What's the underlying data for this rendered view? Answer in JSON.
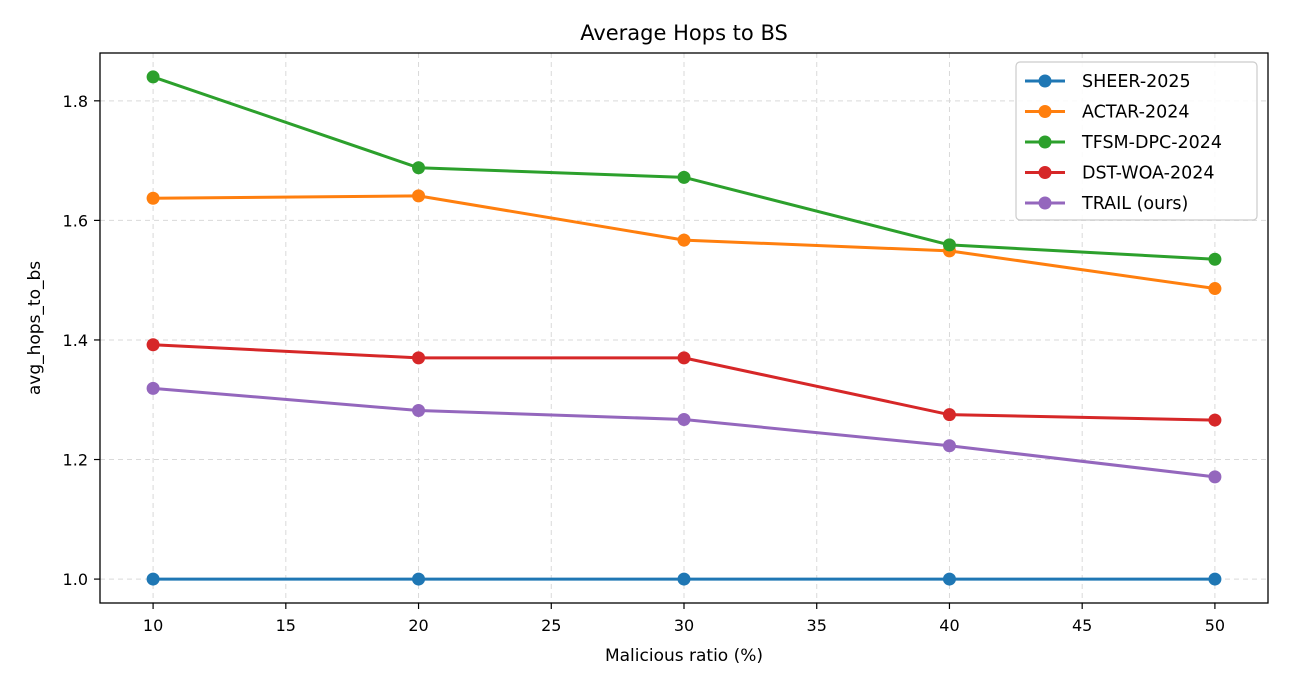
{
  "chart_data": {
    "type": "line",
    "title": "Average Hops to BS",
    "xlabel": "Malicious ratio (%)",
    "ylabel": "avg_hops_to_bs",
    "x": [
      10,
      20,
      30,
      40,
      50
    ],
    "xlim": [
      8,
      52
    ],
    "ylim": [
      0.96,
      1.88
    ],
    "xticks": [
      10,
      15,
      20,
      25,
      30,
      35,
      40,
      45,
      50
    ],
    "yticks": [
      1.0,
      1.2,
      1.4,
      1.6,
      1.8
    ],
    "grid": true,
    "legend_position": "top-right",
    "series": [
      {
        "name": "SHEER-2025",
        "color": "#1f77b4",
        "values": [
          1.0,
          1.0,
          1.0,
          1.0,
          1.0
        ]
      },
      {
        "name": "ACTAR-2024",
        "color": "#ff7f0e",
        "values": [
          1.637,
          1.641,
          1.567,
          1.549,
          1.486
        ]
      },
      {
        "name": "TFSM-DPC-2024",
        "color": "#2ca02c",
        "values": [
          1.84,
          1.688,
          1.672,
          1.559,
          1.535
        ]
      },
      {
        "name": "DST-WOA-2024",
        "color": "#d62728",
        "values": [
          1.392,
          1.37,
          1.37,
          1.275,
          1.266
        ]
      },
      {
        "name": "TRAIL (ours)",
        "color": "#9467bd",
        "values": [
          1.319,
          1.282,
          1.267,
          1.223,
          1.171
        ]
      }
    ]
  }
}
